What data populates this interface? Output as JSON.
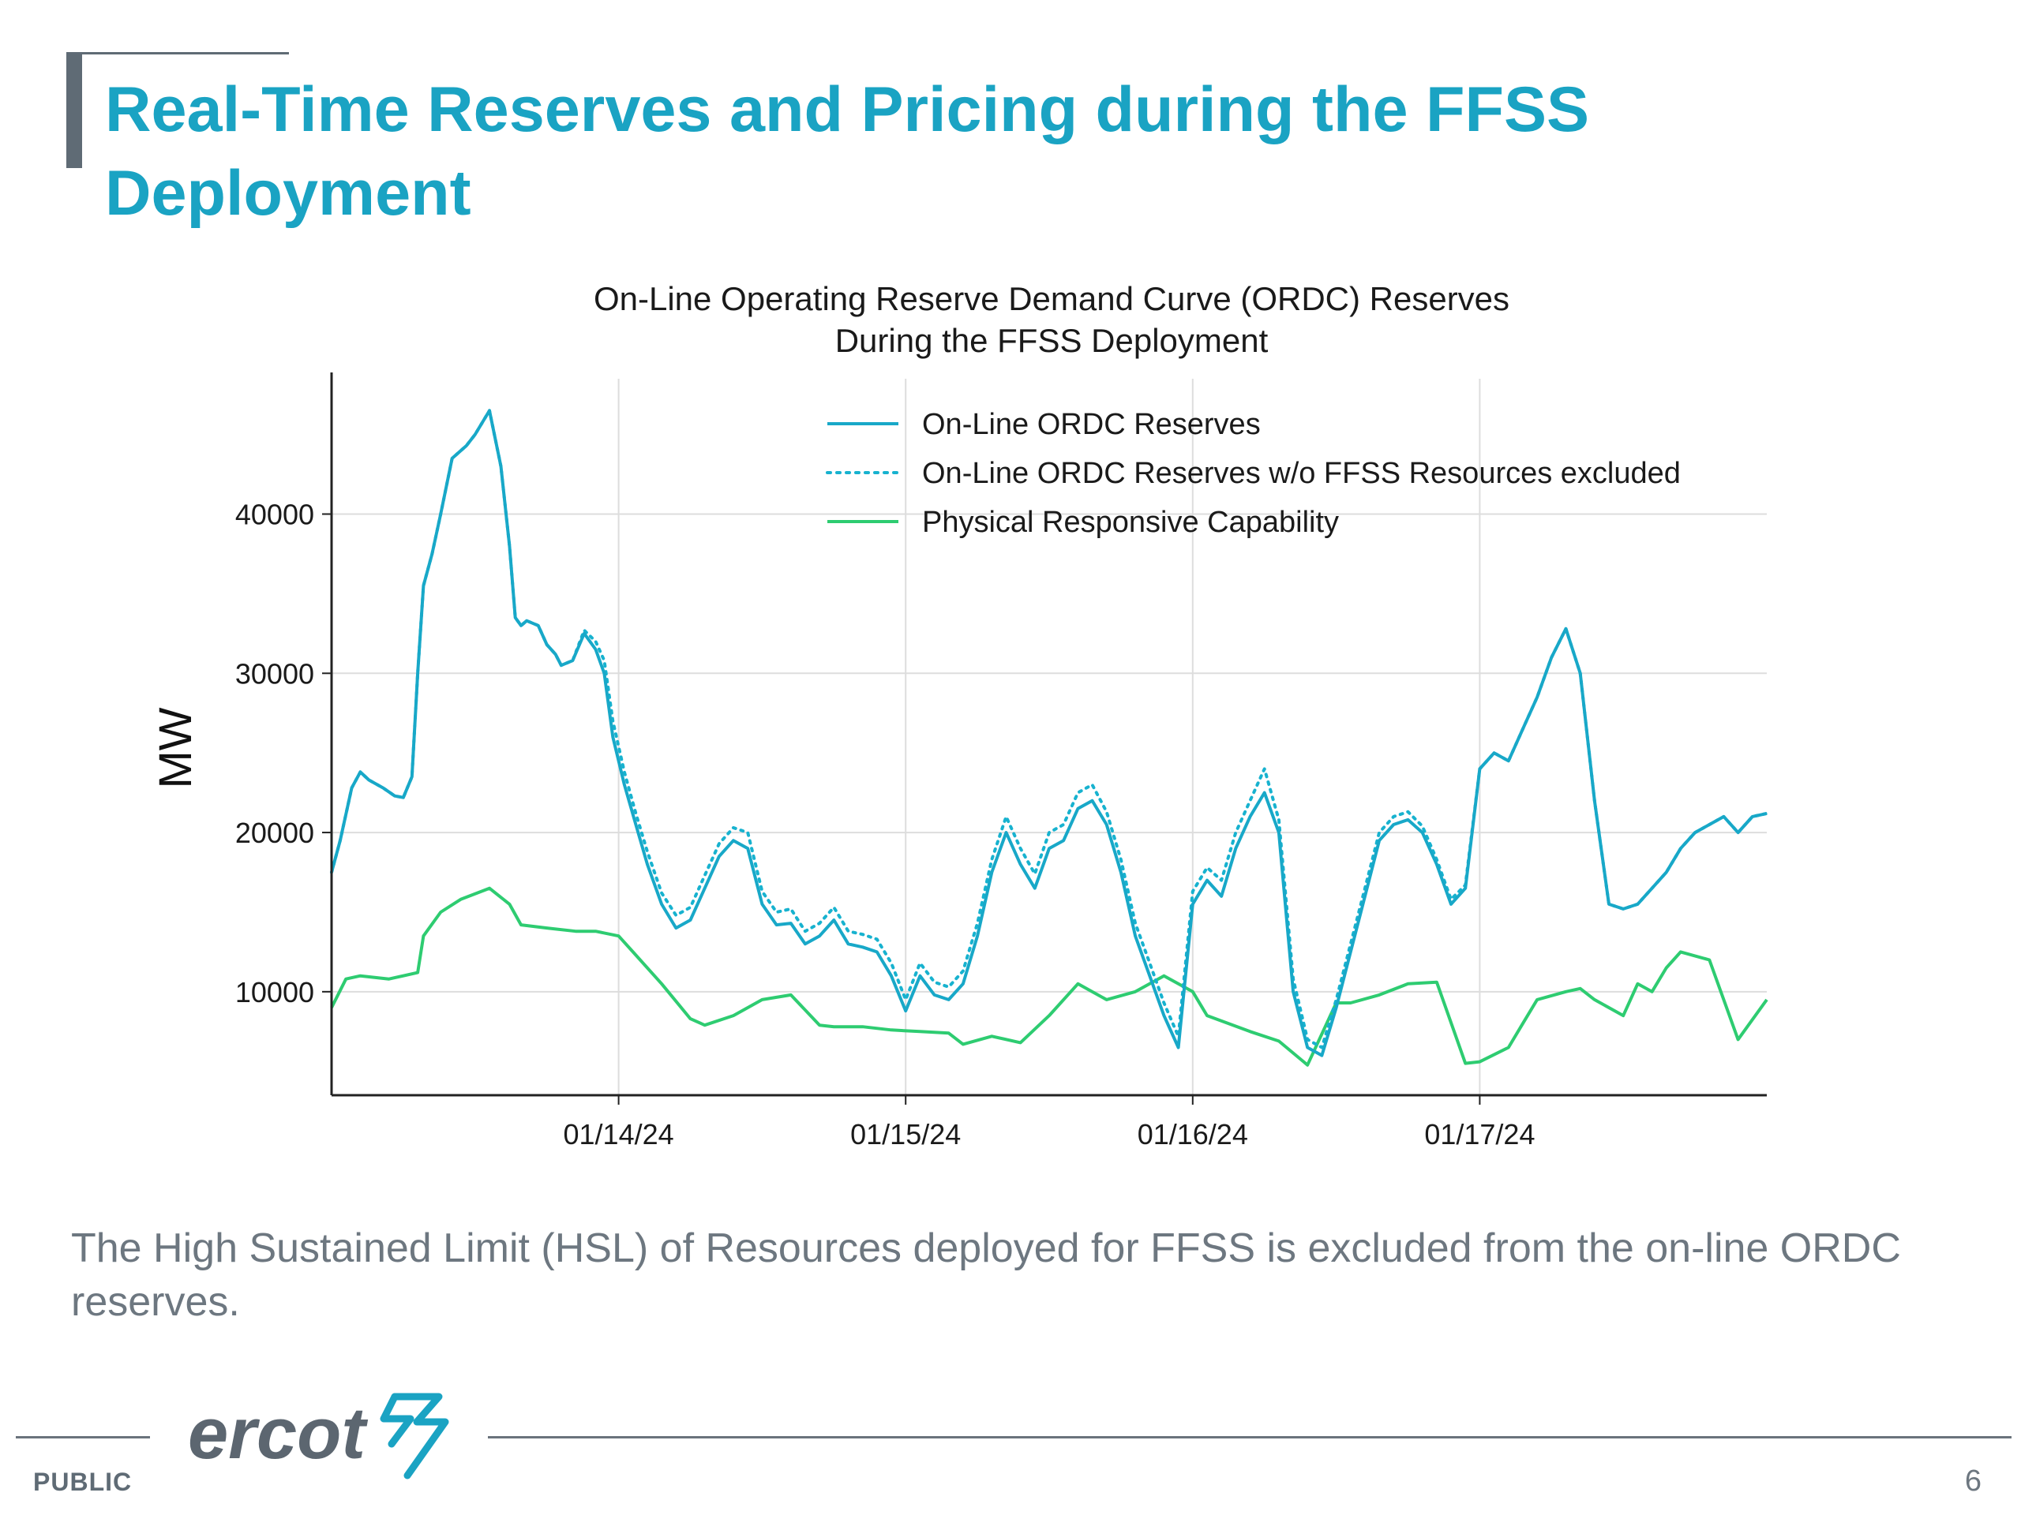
{
  "slide": {
    "title": "Real-Time Reserves and Pricing during the FFSS Deployment",
    "body": "The High Sustained Limit (HSL) of Resources deployed for FFSS is excluded from the on-line ORDC reserves.",
    "footer_label": "PUBLIC",
    "page_number": "6",
    "logo_text": "ercot"
  },
  "colors": {
    "title": "#1aa3c3",
    "online": "#18a8c8",
    "excluded": "#17b2cf",
    "physical": "#2ecc71",
    "grid": "#dddddd",
    "text": "#6d7780"
  },
  "chart_data": {
    "type": "line",
    "title_lines": [
      "On-Line Operating Reserve Demand Curve (ORDC) Reserves",
      "During the FFSS Deployment"
    ],
    "xlabel": "",
    "ylabel": "MW",
    "x_ticks": [
      "01/14/24",
      "01/15/24",
      "01/16/24",
      "01/17/24"
    ],
    "x_tick_pos": [
      1,
      2,
      3,
      4
    ],
    "xlim": [
      0,
      5
    ],
    "y_ticks": [
      "10000",
      "20000",
      "30000",
      "40000"
    ],
    "y_tick_vals": [
      10000,
      20000,
      30000,
      40000
    ],
    "ylim": [
      3500,
      48500
    ],
    "grid": true,
    "legend_position": "top-right",
    "series": [
      {
        "name": "On-Line ORDC Reserves",
        "style": "solid",
        "color": "#18a8c8",
        "x": [
          0,
          0.03,
          0.07,
          0.1,
          0.13,
          0.18,
          0.22,
          0.25,
          0.28,
          0.3,
          0.32,
          0.35,
          0.38,
          0.42,
          0.47,
          0.5,
          0.55,
          0.59,
          0.62,
          0.64,
          0.66,
          0.68,
          0.72,
          0.75,
          0.78,
          0.8,
          0.84,
          0.88,
          0.92,
          0.95,
          0.98,
          1.02,
          1.06,
          1.1,
          1.15,
          1.2,
          1.25,
          1.3,
          1.35,
          1.4,
          1.45,
          1.5,
          1.55,
          1.6,
          1.65,
          1.7,
          1.75,
          1.8,
          1.85,
          1.9,
          1.95,
          2.0,
          2.05,
          2.1,
          2.15,
          2.2,
          2.25,
          2.3,
          2.35,
          2.4,
          2.45,
          2.5,
          2.55,
          2.6,
          2.65,
          2.7,
          2.75,
          2.8,
          2.85,
          2.9,
          2.95,
          3.0,
          3.05,
          3.1,
          3.15,
          3.2,
          3.25,
          3.3,
          3.35,
          3.4,
          3.45,
          3.5,
          3.55,
          3.6,
          3.65,
          3.7,
          3.75,
          3.8,
          3.85,
          3.9,
          3.95,
          4.0,
          4.05,
          4.1,
          4.15,
          4.2,
          4.25,
          4.3,
          4.35,
          4.4,
          4.45,
          4.5,
          4.55,
          4.6,
          4.65,
          4.7,
          4.75,
          4.8,
          4.85,
          4.9,
          4.95,
          5.0
        ],
        "y": [
          17500,
          19500,
          22800,
          23800,
          23300,
          22800,
          22300,
          22200,
          23500,
          30000,
          35500,
          37500,
          40000,
          43500,
          44300,
          45000,
          46500,
          43000,
          38000,
          33500,
          33000,
          33300,
          33000,
          31800,
          31200,
          30500,
          30800,
          32500,
          31500,
          30000,
          26000,
          23000,
          20500,
          18000,
          15500,
          14000,
          14500,
          16500,
          18500,
          19500,
          19000,
          15500,
          14200,
          14300,
          13000,
          13500,
          14500,
          13000,
          12800,
          12500,
          11000,
          8800,
          11000,
          9800,
          9500,
          10500,
          13500,
          17500,
          20000,
          18000,
          16500,
          19000,
          19500,
          21500,
          22000,
          20500,
          17500,
          13500,
          11000,
          8500,
          6500,
          15500,
          17000,
          16000,
          19000,
          21000,
          22500,
          20000,
          10000,
          6500,
          6000,
          9000,
          12500,
          16000,
          19500,
          20500,
          20800,
          20000,
          18000,
          15500,
          16500,
          24000,
          25000,
          24500,
          26500,
          28500,
          31000,
          32800,
          30000,
          22000,
          15500,
          15200,
          15500,
          16500,
          17500,
          19000,
          20000,
          20500,
          21000,
          20000,
          21000,
          21200
        ]
      },
      {
        "name": "On-Line ORDC Reserves w/o FFSS Resources excluded",
        "style": "dotted",
        "color": "#17b2cf",
        "x": [
          0,
          0.03,
          0.07,
          0.1,
          0.13,
          0.18,
          0.22,
          0.25,
          0.28,
          0.3,
          0.32,
          0.35,
          0.38,
          0.42,
          0.47,
          0.5,
          0.55,
          0.59,
          0.62,
          0.64,
          0.66,
          0.68,
          0.72,
          0.75,
          0.78,
          0.8,
          0.84,
          0.88,
          0.92,
          0.95,
          0.98,
          1.02,
          1.06,
          1.1,
          1.15,
          1.2,
          1.25,
          1.3,
          1.35,
          1.4,
          1.45,
          1.5,
          1.55,
          1.6,
          1.65,
          1.7,
          1.75,
          1.8,
          1.85,
          1.9,
          1.95,
          2.0,
          2.05,
          2.1,
          2.15,
          2.2,
          2.25,
          2.3,
          2.35,
          2.4,
          2.45,
          2.5,
          2.55,
          2.6,
          2.65,
          2.7,
          2.75,
          2.8,
          2.85,
          2.9,
          2.95,
          3.0,
          3.05,
          3.1,
          3.15,
          3.2,
          3.25,
          3.3,
          3.35,
          3.4,
          3.45,
          3.5,
          3.55,
          3.6,
          3.65,
          3.7,
          3.75,
          3.8,
          3.85,
          3.9,
          3.95,
          4.0,
          4.05,
          4.1,
          4.15,
          4.2,
          4.25,
          4.3,
          4.35,
          4.4,
          4.45,
          4.5,
          4.55,
          4.6,
          4.65,
          4.7,
          4.75,
          4.8,
          4.85,
          4.9,
          4.95,
          5.0
        ],
        "y": [
          17500,
          19500,
          22800,
          23800,
          23300,
          22800,
          22300,
          22200,
          23500,
          30000,
          35500,
          37500,
          40000,
          43500,
          44300,
          45000,
          46500,
          43000,
          38000,
          33500,
          33000,
          33300,
          33000,
          31800,
          31200,
          30500,
          30800,
          32700,
          32000,
          30800,
          27000,
          23800,
          21200,
          18800,
          16200,
          14800,
          15300,
          17300,
          19300,
          20300,
          20000,
          16300,
          15000,
          15200,
          13800,
          14300,
          15300,
          13800,
          13600,
          13300,
          11800,
          9500,
          11800,
          10600,
          10300,
          11300,
          14300,
          18300,
          21000,
          19000,
          17400,
          20000,
          20500,
          22500,
          23000,
          21300,
          18300,
          14300,
          11800,
          9300,
          7200,
          16300,
          17800,
          17000,
          20000,
          22000,
          24000,
          20800,
          10800,
          7000,
          6500,
          9500,
          13000,
          16500,
          20000,
          21000,
          21300,
          20400,
          18300,
          15800,
          16700,
          24000,
          25000,
          24500,
          26500,
          28500,
          31000,
          32800,
          30000,
          22000,
          15500,
          15200,
          15500,
          16500,
          17500,
          19000,
          20000,
          20500,
          21000,
          20000,
          21000,
          21200
        ]
      },
      {
        "name": "Physical Responsive Capability",
        "style": "solid",
        "color": "#2ecc71",
        "x": [
          0,
          0.05,
          0.1,
          0.2,
          0.3,
          0.32,
          0.38,
          0.45,
          0.55,
          0.62,
          0.66,
          0.75,
          0.85,
          0.92,
          1.0,
          1.05,
          1.15,
          1.25,
          1.3,
          1.4,
          1.5,
          1.6,
          1.7,
          1.75,
          1.85,
          1.95,
          2.05,
          2.15,
          2.2,
          2.3,
          2.4,
          2.5,
          2.6,
          2.7,
          2.8,
          2.9,
          3.0,
          3.05,
          3.2,
          3.3,
          3.4,
          3.5,
          3.55,
          3.65,
          3.75,
          3.85,
          3.95,
          4.0,
          4.1,
          4.15,
          4.2,
          4.3,
          4.35,
          4.4,
          4.5,
          4.55,
          4.6,
          4.65,
          4.7,
          4.8,
          4.9,
          5.0
        ],
        "y": [
          9000,
          10800,
          11000,
          10800,
          11200,
          13500,
          15000,
          15800,
          16500,
          15500,
          14200,
          14000,
          13800,
          13800,
          13500,
          12500,
          10500,
          8300,
          7900,
          8500,
          9500,
          9800,
          7900,
          7800,
          7800,
          7600,
          7500,
          7400,
          6700,
          7200,
          6800,
          8500,
          10500,
          9500,
          10000,
          11000,
          10000,
          8500,
          7500,
          6900,
          5400,
          9300,
          9300,
          9800,
          10500,
          10600,
          5500,
          5600,
          6500,
          8000,
          9500,
          10000,
          10200,
          9500,
          8500,
          10500,
          10000,
          11500,
          12500,
          12000,
          7000,
          9500
        ]
      }
    ]
  }
}
